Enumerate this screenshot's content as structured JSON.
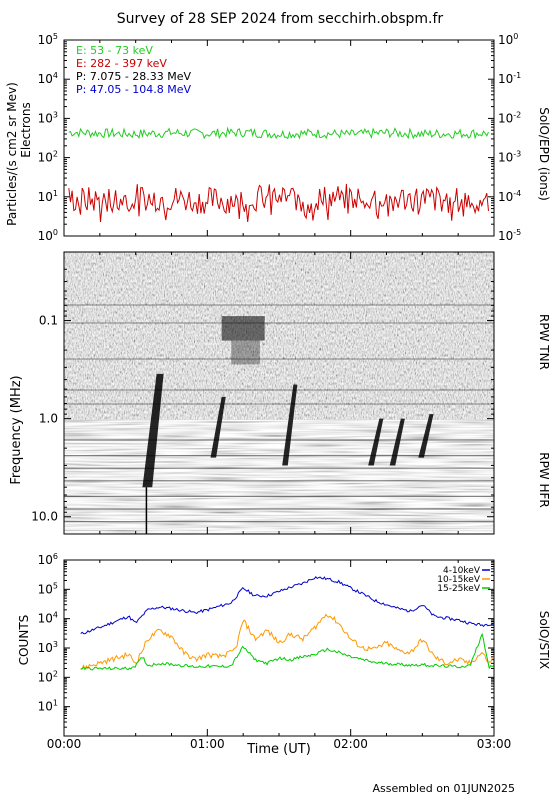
{
  "title": "Survey of 28 SEP 2024 from secchirh.obspm.fr",
  "footer": "Assembled on 01JUN2025",
  "chart_data": [
    {
      "type": "line",
      "panel": "particles",
      "ylabel": "Particles/(s cm2 sr Mev)",
      "ylabel2": "Electrons",
      "right_label": "SolO/EPD (ions)",
      "yscale": "log",
      "ylim": [
        1,
        100000
      ],
      "y_ticks": [
        "10^0",
        "10^1",
        "10^2",
        "10^3",
        "10^4",
        "10^5"
      ],
      "y2lim": [
        1e-05,
        1
      ],
      "y2_ticks": [
        "10^-5",
        "10^-4",
        "10^-3",
        "10^-2",
        "10^-1",
        "10^0"
      ],
      "xlim": [
        0,
        180
      ],
      "x_units": "minutes since 00:00 UT",
      "legend": [
        {
          "label": "E: 53 - 73 keV",
          "color": "#22cc22"
        },
        {
          "label": "E: 282 - 397 keV",
          "color": "#cc0000"
        },
        {
          "label": "P: 7.075 - 28.33 MeV",
          "color": "#000000"
        },
        {
          "label": "P: 47.05 - 104.8 MeV",
          "color": "#0000cc"
        }
      ],
      "series": [
        {
          "name": "E: 53 - 73 keV",
          "color": "#22cc22",
          "x": [
            0,
            15,
            30,
            45,
            60,
            75,
            90,
            105,
            120,
            135,
            150,
            165,
            180
          ],
          "y": [
            450,
            420,
            400,
            430,
            410,
            440,
            400,
            420,
            390,
            430,
            400,
            410,
            420
          ]
        },
        {
          "name": "E: 282 - 397 keV",
          "color": "#cc0000",
          "x": [
            0,
            15,
            30,
            45,
            60,
            75,
            90,
            105,
            120,
            135,
            150,
            165,
            180
          ],
          "y": [
            9,
            8,
            10,
            9,
            8,
            9,
            10,
            9,
            10,
            9,
            9,
            8,
            9
          ]
        }
      ]
    },
    {
      "type": "heatmap",
      "panel": "radio",
      "ylabel": "Frequency (MHz)",
      "yscale": "log",
      "y_ticks": [
        "0.1",
        "1.0",
        "10.0"
      ],
      "ylim_mhz": [
        0.02,
        15
      ],
      "labels_right": [
        "RPW TNR",
        "RPW HFR"
      ],
      "bursts": [
        {
          "t": 37,
          "f_top_mhz": 0.35,
          "f_bottom_mhz": 5.0
        },
        {
          "t": 65,
          "f_top_mhz": 0.6,
          "f_bottom_mhz": 2.5
        },
        {
          "t": 95,
          "f_top_mhz": 0.45,
          "f_bottom_mhz": 3.0
        },
        {
          "t": 131,
          "f_top_mhz": 1.0,
          "f_bottom_mhz": 3.0
        },
        {
          "t": 140,
          "f_top_mhz": 1.0,
          "f_bottom_mhz": 3.0
        },
        {
          "t": 152,
          "f_top_mhz": 0.9,
          "f_bottom_mhz": 2.5
        }
      ]
    },
    {
      "type": "line",
      "panel": "stix",
      "ylabel": "COUNTS",
      "right_label": "SolO/STIX",
      "xlabel": "Time (UT)",
      "yscale": "log",
      "ylim": [
        1,
        1000000
      ],
      "y_ticks": [
        "10^1",
        "10^2",
        "10^3",
        "10^4",
        "10^5",
        "10^6"
      ],
      "x_ticks": [
        "00:00",
        "01:00",
        "02:00",
        "03:00"
      ],
      "xlim": [
        0,
        180
      ],
      "legend": [
        {
          "label": "4-10keV",
          "color": "#0000cc"
        },
        {
          "label": "10-15keV",
          "color": "#ff9900"
        },
        {
          "label": "15-25keV",
          "color": "#00cc00"
        }
      ],
      "series": [
        {
          "name": "4-10keV",
          "color": "#0000cc",
          "x": [
            7,
            15,
            27,
            30,
            35,
            40,
            45,
            55,
            60,
            70,
            75,
            80,
            85,
            95,
            100,
            105,
            110,
            115,
            120,
            125,
            130,
            135,
            140,
            145,
            150,
            155,
            165,
            170,
            175,
            180
          ],
          "y": [
            3000,
            5000,
            12000,
            7000,
            20000,
            25000,
            22000,
            16000,
            20000,
            35000,
            110000,
            60000,
            60000,
            120000,
            160000,
            260000,
            230000,
            180000,
            110000,
            70000,
            42000,
            30000,
            22000,
            18000,
            30000,
            12000,
            9000,
            7000,
            6000,
            7000
          ]
        },
        {
          "name": "10-15keV",
          "color": "#ff9900",
          "x": [
            7,
            27,
            30,
            33,
            35,
            40,
            45,
            50,
            55,
            60,
            65,
            70,
            72,
            75,
            80,
            85,
            90,
            95,
            100,
            105,
            110,
            115,
            120,
            125,
            130,
            135,
            140,
            145,
            150,
            155,
            160,
            165,
            170,
            175,
            178,
            180
          ],
          "y": [
            200,
            600,
            300,
            900,
            2000,
            4000,
            2500,
            700,
            400,
            600,
            500,
            700,
            1000,
            9000,
            2000,
            4000,
            1500,
            3000,
            2000,
            5000,
            15000,
            7000,
            2000,
            1000,
            900,
            1500,
            800,
            700,
            2000,
            500,
            300,
            400,
            300,
            700,
            300,
            500
          ]
        },
        {
          "name": "15-25keV",
          "color": "#00cc00",
          "x": [
            7,
            27,
            30,
            33,
            35,
            40,
            45,
            50,
            55,
            60,
            65,
            70,
            75,
            80,
            85,
            90,
            95,
            100,
            105,
            110,
            115,
            120,
            125,
            130,
            135,
            140,
            145,
            150,
            155,
            160,
            165,
            170,
            175,
            178,
            180
          ],
          "y": [
            200,
            200,
            250,
            500,
            250,
            300,
            280,
            250,
            230,
            240,
            230,
            250,
            1100,
            400,
            300,
            450,
            400,
            500,
            600,
            900,
            700,
            500,
            400,
            320,
            300,
            280,
            260,
            270,
            250,
            240,
            230,
            250,
            3000,
            230,
            240
          ]
        }
      ]
    }
  ]
}
